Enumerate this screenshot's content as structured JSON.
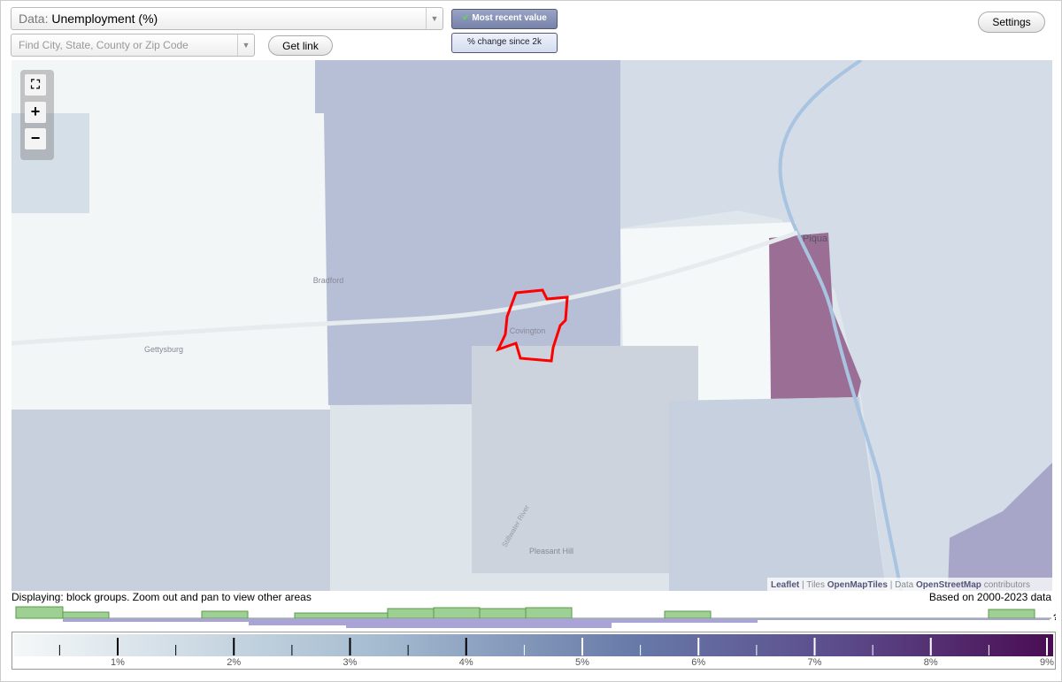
{
  "controls": {
    "data_label": "Data:",
    "data_value": "Unemployment (%)",
    "search_placeholder": "Find City, State, County or Zip Code",
    "get_link": "Get link",
    "most_recent": "Most recent value",
    "change_since": "% change since 2k",
    "settings": "Settings",
    "zoom_in": "+",
    "zoom_out": "−"
  },
  "map": {
    "labels": [
      "Bradford",
      "Gettysburg",
      "Covington",
      "Piqua",
      "Pleasant Hill",
      "Stillwater River"
    ],
    "attribution": {
      "leaflet": "Leaflet",
      "separator": "|",
      "tiles_label": "Tiles",
      "tiles_link": "OpenMapTiles",
      "data_label": "Data",
      "data_link": "OpenStreetMap",
      "suffix": "contributors"
    }
  },
  "status": {
    "displaying": "Displaying: block groups. Zoom out and pan to view other areas",
    "based_on": "Based on 2000-2023 data",
    "unknown": "?"
  },
  "legend": {
    "labels": [
      "1%",
      "2%",
      "3%",
      "4%",
      "5%",
      "6%",
      "7%",
      "8%",
      "9%"
    ]
  }
}
